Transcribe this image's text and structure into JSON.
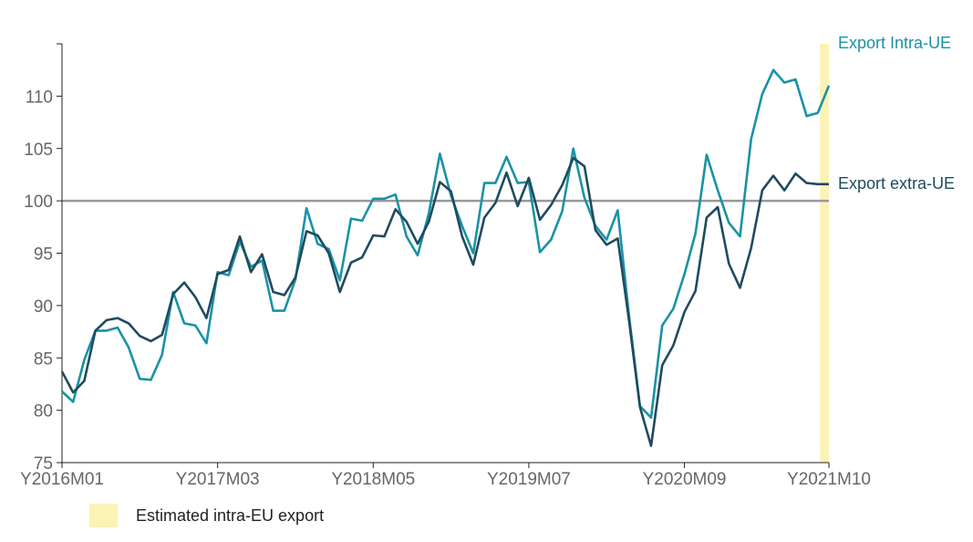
{
  "chart_data": {
    "type": "line",
    "title": "",
    "xlabel": "",
    "ylabel": "",
    "ylim": [
      75,
      115
    ],
    "yticks": [
      75,
      80,
      85,
      90,
      95,
      100,
      105,
      110
    ],
    "xtick_labels": [
      "Y2016M01",
      "Y2017M03",
      "Y2018M05",
      "Y2019M07",
      "Y2020M09",
      "Y2021M10"
    ],
    "xtick_index": [
      0,
      14,
      28,
      42,
      56,
      69
    ],
    "x_start": "2016-01",
    "x_end": "2021-10",
    "reference_line": {
      "y": 100,
      "color": "#999999"
    },
    "highlight": {
      "from_index": 68.2,
      "to_index": 69,
      "color": "#fbf3b6",
      "label": "Estimated intra-EU export"
    },
    "series": [
      {
        "name": "Export Intra-UE",
        "color": "#1a92a6",
        "values": [
          81.8,
          80.8,
          84.8,
          87.6,
          87.6,
          87.9,
          86.0,
          83.0,
          82.9,
          85.3,
          91.3,
          88.3,
          88.1,
          86.4,
          93.2,
          92.9,
          96.1,
          93.7,
          94.3,
          89.5,
          89.5,
          92.5,
          99.3,
          95.9,
          95.4,
          92.4,
          98.3,
          98.1,
          100.2,
          100.2,
          100.6,
          96.6,
          94.8,
          98.8,
          104.5,
          100.5,
          97.6,
          95.0,
          101.7,
          101.7,
          104.2,
          101.7,
          101.8,
          95.1,
          96.3,
          99.0,
          105.0,
          100.3,
          97.6,
          96.3,
          99.1,
          89.2,
          80.4,
          79.3,
          88.1,
          89.7,
          93.0,
          96.9,
          104.4,
          101.0,
          97.9,
          96.6,
          105.9,
          110.2,
          112.5,
          111.3,
          111.6,
          108.1,
          108.4,
          111.0
        ]
      },
      {
        "name": "Export extra-UE",
        "color": "#1f4b5f",
        "values": [
          83.7,
          81.7,
          82.8,
          87.6,
          88.6,
          88.8,
          88.3,
          87.1,
          86.6,
          87.2,
          91.1,
          92.2,
          90.8,
          88.8,
          93.0,
          93.4,
          96.6,
          93.2,
          94.9,
          91.3,
          91.0,
          92.7,
          97.1,
          96.7,
          95.0,
          91.3,
          94.1,
          94.6,
          96.7,
          96.6,
          99.2,
          98.0,
          95.9,
          98.0,
          101.8,
          100.9,
          96.6,
          93.9,
          98.4,
          99.8,
          102.7,
          99.5,
          102.2,
          98.2,
          99.6,
          101.5,
          104.1,
          103.3,
          97.2,
          95.8,
          96.4,
          88.7,
          80.3,
          76.6,
          84.3,
          86.2,
          89.4,
          91.4,
          98.4,
          99.4,
          94.0,
          91.7,
          95.5,
          101.0,
          102.4,
          101.0,
          102.6,
          101.7,
          101.6,
          101.6
        ]
      }
    ]
  },
  "legend": {
    "label": "Estimated intra-EU export",
    "color": "#fbf3b6"
  }
}
